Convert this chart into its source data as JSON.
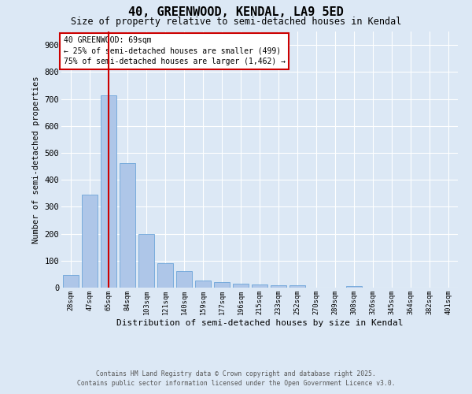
{
  "title": "40, GREENWOOD, KENDAL, LA9 5ED",
  "subtitle": "Size of property relative to semi-detached houses in Kendal",
  "xlabel": "Distribution of semi-detached houses by size in Kendal",
  "ylabel": "Number of semi-detached properties",
  "categories": [
    "28sqm",
    "47sqm",
    "65sqm",
    "84sqm",
    "103sqm",
    "121sqm",
    "140sqm",
    "159sqm",
    "177sqm",
    "196sqm",
    "215sqm",
    "233sqm",
    "252sqm",
    "270sqm",
    "289sqm",
    "308sqm",
    "326sqm",
    "345sqm",
    "364sqm",
    "382sqm",
    "401sqm"
  ],
  "values": [
    47,
    344,
    712,
    463,
    199,
    92,
    60,
    25,
    20,
    15,
    12,
    10,
    10,
    0,
    0,
    5,
    0,
    0,
    0,
    0,
    0
  ],
  "bar_color": "#aec6e8",
  "bar_edge_color": "#5b9bd5",
  "vline_x_index": 2,
  "vline_color": "#cc0000",
  "annotation_line1": "40 GREENWOOD: 69sqm",
  "annotation_line2": "← 25% of semi-detached houses are smaller (499)",
  "annotation_line3": "75% of semi-detached houses are larger (1,462) →",
  "annotation_box_color": "#ffffff",
  "annotation_box_edge": "#cc0000",
  "footnote1": "Contains HM Land Registry data © Crown copyright and database right 2025.",
  "footnote2": "Contains public sector information licensed under the Open Government Licence v3.0.",
  "background_color": "#dce8f5",
  "plot_bg_color": "#dce8f5",
  "ylim": [
    0,
    950
  ],
  "yticks": [
    0,
    100,
    200,
    300,
    400,
    500,
    600,
    700,
    800,
    900
  ]
}
